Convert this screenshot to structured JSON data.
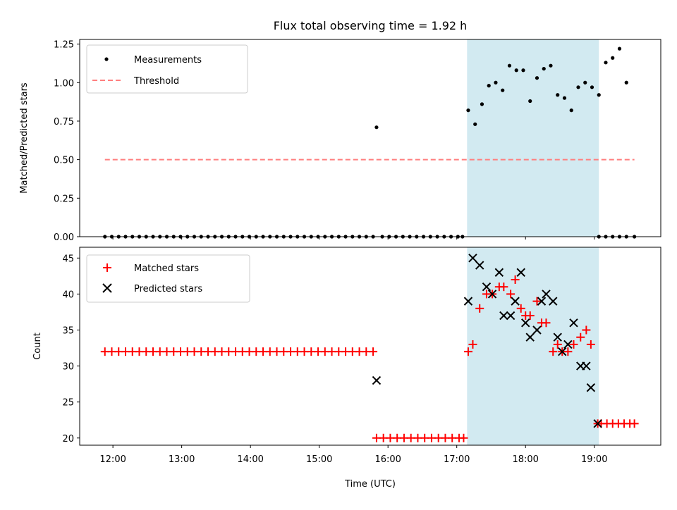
{
  "title": "Flux total observing time = 1.92 h",
  "colors": {
    "shade": "#add8e6",
    "measurement": "#000000",
    "threshold": "#ff7f7f",
    "matched": "#ff0000",
    "predicted": "#000000"
  },
  "chart_data": [
    {
      "type": "scatter",
      "ylabel": "Matched/Predicted stars",
      "xlim": [
        "11:31",
        "19:58"
      ],
      "ylim": [
        0,
        1.28
      ],
      "yticks": [
        "0.00",
        "0.25",
        "0.50",
        "0.75",
        "1.00",
        "1.25"
      ],
      "legend_position": "upper-left",
      "shaded_interval": [
        "17:09",
        "19:04"
      ],
      "threshold": {
        "name": "Threshold",
        "value": 0.5,
        "x_range": [
          "11:53",
          "19:35"
        ],
        "style": "dashed"
      },
      "series": [
        {
          "name": "Measurements",
          "marker": "dot",
          "points": [
            [
              "11:53",
              0
            ],
            [
              "11:59",
              0
            ],
            [
              "12:05",
              0
            ],
            [
              "12:11",
              0
            ],
            [
              "12:17",
              0
            ],
            [
              "12:23",
              0
            ],
            [
              "12:29",
              0
            ],
            [
              "12:35",
              0
            ],
            [
              "12:41",
              0
            ],
            [
              "12:47",
              0
            ],
            [
              "12:53",
              0
            ],
            [
              "12:59",
              0
            ],
            [
              "13:05",
              0
            ],
            [
              "13:11",
              0
            ],
            [
              "13:17",
              0
            ],
            [
              "13:23",
              0
            ],
            [
              "13:29",
              0
            ],
            [
              "13:35",
              0
            ],
            [
              "13:41",
              0
            ],
            [
              "13:47",
              0
            ],
            [
              "13:53",
              0
            ],
            [
              "13:59",
              0
            ],
            [
              "14:05",
              0
            ],
            [
              "14:11",
              0
            ],
            [
              "14:17",
              0
            ],
            [
              "14:23",
              0
            ],
            [
              "14:29",
              0
            ],
            [
              "14:35",
              0
            ],
            [
              "14:41",
              0
            ],
            [
              "14:47",
              0
            ],
            [
              "14:53",
              0
            ],
            [
              "14:59",
              0
            ],
            [
              "15:05",
              0
            ],
            [
              "15:11",
              0
            ],
            [
              "15:17",
              0
            ],
            [
              "15:23",
              0
            ],
            [
              "15:29",
              0
            ],
            [
              "15:35",
              0
            ],
            [
              "15:41",
              0
            ],
            [
              "15:47",
              0
            ],
            [
              "15:50",
              0.71
            ],
            [
              "15:55",
              0
            ],
            [
              "16:01",
              0
            ],
            [
              "16:07",
              0
            ],
            [
              "16:13",
              0
            ],
            [
              "16:19",
              0
            ],
            [
              "16:25",
              0
            ],
            [
              "16:31",
              0
            ],
            [
              "16:37",
              0
            ],
            [
              "16:43",
              0
            ],
            [
              "16:49",
              0
            ],
            [
              "16:55",
              0
            ],
            [
              "17:01",
              0
            ],
            [
              "17:05",
              0
            ],
            [
              "17:10",
              0.82
            ],
            [
              "17:16",
              0.73
            ],
            [
              "17:22",
              0.86
            ],
            [
              "17:28",
              0.98
            ],
            [
              "17:34",
              1.0
            ],
            [
              "17:40",
              0.95
            ],
            [
              "17:46",
              1.11
            ],
            [
              "17:52",
              1.08
            ],
            [
              "17:58",
              1.08
            ],
            [
              "18:04",
              0.88
            ],
            [
              "18:10",
              1.03
            ],
            [
              "18:16",
              1.09
            ],
            [
              "18:22",
              1.11
            ],
            [
              "18:28",
              0.92
            ],
            [
              "18:34",
              0.9
            ],
            [
              "18:40",
              0.82
            ],
            [
              "18:46",
              0.97
            ],
            [
              "18:52",
              1.0
            ],
            [
              "18:58",
              0.97
            ],
            [
              "19:04",
              0.92
            ],
            [
              "19:10",
              1.13
            ],
            [
              "19:16",
              1.16
            ],
            [
              "19:22",
              1.22
            ],
            [
              "19:28",
              1.0
            ],
            [
              "19:04",
              0
            ],
            [
              "19:10",
              0
            ],
            [
              "19:16",
              0
            ],
            [
              "19:22",
              0
            ],
            [
              "19:28",
              0
            ],
            [
              "19:35",
              0
            ]
          ]
        }
      ]
    },
    {
      "type": "scatter",
      "xlabel": "Time (UTC)",
      "ylabel": "Count",
      "xlim": [
        "11:31",
        "19:58"
      ],
      "ylim": [
        19,
        46.5
      ],
      "xticks": [
        "12:00",
        "13:00",
        "14:00",
        "15:00",
        "16:00",
        "17:00",
        "18:00",
        "19:00"
      ],
      "yticks": [
        "20",
        "25",
        "30",
        "35",
        "40",
        "45"
      ],
      "legend_position": "upper-left",
      "shaded_interval": [
        "17:09",
        "19:04"
      ],
      "series": [
        {
          "name": "Matched stars",
          "marker": "plus",
          "points": [
            [
              "11:53",
              32
            ],
            [
              "11:59",
              32
            ],
            [
              "12:05",
              32
            ],
            [
              "12:11",
              32
            ],
            [
              "12:17",
              32
            ],
            [
              "12:23",
              32
            ],
            [
              "12:29",
              32
            ],
            [
              "12:35",
              32
            ],
            [
              "12:41",
              32
            ],
            [
              "12:47",
              32
            ],
            [
              "12:53",
              32
            ],
            [
              "12:59",
              32
            ],
            [
              "13:05",
              32
            ],
            [
              "13:11",
              32
            ],
            [
              "13:17",
              32
            ],
            [
              "13:23",
              32
            ],
            [
              "13:29",
              32
            ],
            [
              "13:35",
              32
            ],
            [
              "13:41",
              32
            ],
            [
              "13:47",
              32
            ],
            [
              "13:53",
              32
            ],
            [
              "13:59",
              32
            ],
            [
              "14:05",
              32
            ],
            [
              "14:11",
              32
            ],
            [
              "14:17",
              32
            ],
            [
              "14:23",
              32
            ],
            [
              "14:29",
              32
            ],
            [
              "14:35",
              32
            ],
            [
              "14:41",
              32
            ],
            [
              "14:47",
              32
            ],
            [
              "14:53",
              32
            ],
            [
              "14:59",
              32
            ],
            [
              "15:05",
              32
            ],
            [
              "15:11",
              32
            ],
            [
              "15:17",
              32
            ],
            [
              "15:23",
              32
            ],
            [
              "15:29",
              32
            ],
            [
              "15:35",
              32
            ],
            [
              "15:41",
              32
            ],
            [
              "15:47",
              32
            ],
            [
              "15:50",
              20
            ],
            [
              "15:56",
              20
            ],
            [
              "16:02",
              20
            ],
            [
              "16:08",
              20
            ],
            [
              "16:14",
              20
            ],
            [
              "16:20",
              20
            ],
            [
              "16:26",
              20
            ],
            [
              "16:32",
              20
            ],
            [
              "16:38",
              20
            ],
            [
              "16:44",
              20
            ],
            [
              "16:50",
              20
            ],
            [
              "16:56",
              20
            ],
            [
              "17:02",
              20
            ],
            [
              "17:06",
              20
            ],
            [
              "17:10",
              32
            ],
            [
              "17:14",
              33
            ],
            [
              "17:20",
              38
            ],
            [
              "17:26",
              40
            ],
            [
              "17:31",
              40
            ],
            [
              "17:37",
              41
            ],
            [
              "17:41",
              41
            ],
            [
              "17:47",
              40
            ],
            [
              "17:51",
              42
            ],
            [
              "17:56",
              38
            ],
            [
              "18:00",
              37
            ],
            [
              "18:04",
              37
            ],
            [
              "18:10",
              39
            ],
            [
              "18:14",
              36
            ],
            [
              "18:18",
              36
            ],
            [
              "18:24",
              32
            ],
            [
              "18:28",
              33
            ],
            [
              "18:32",
              32
            ],
            [
              "18:37",
              32
            ],
            [
              "18:42",
              33
            ],
            [
              "18:48",
              34
            ],
            [
              "18:53",
              35
            ],
            [
              "18:57",
              33
            ],
            [
              "19:03",
              22
            ],
            [
              "19:06",
              22
            ],
            [
              "19:11",
              22
            ],
            [
              "19:16",
              22
            ],
            [
              "19:21",
              22
            ],
            [
              "19:26",
              22
            ],
            [
              "19:31",
              22
            ],
            [
              "19:35",
              22
            ]
          ]
        },
        {
          "name": "Predicted stars",
          "marker": "x",
          "points": [
            [
              "15:50",
              28
            ],
            [
              "17:10",
              39
            ],
            [
              "17:14",
              45
            ],
            [
              "17:20",
              44
            ],
            [
              "17:26",
              41
            ],
            [
              "17:31",
              40
            ],
            [
              "17:37",
              43
            ],
            [
              "17:41",
              37
            ],
            [
              "17:47",
              37
            ],
            [
              "17:51",
              39
            ],
            [
              "17:56",
              43
            ],
            [
              "18:00",
              36
            ],
            [
              "18:04",
              34
            ],
            [
              "18:10",
              35
            ],
            [
              "18:14",
              39
            ],
            [
              "18:18",
              40
            ],
            [
              "18:24",
              39
            ],
            [
              "18:28",
              34
            ],
            [
              "18:32",
              32
            ],
            [
              "18:37",
              33
            ],
            [
              "18:42",
              36
            ],
            [
              "18:48",
              30
            ],
            [
              "18:53",
              30
            ],
            [
              "18:57",
              27
            ],
            [
              "19:03",
              22
            ]
          ]
        }
      ]
    }
  ]
}
